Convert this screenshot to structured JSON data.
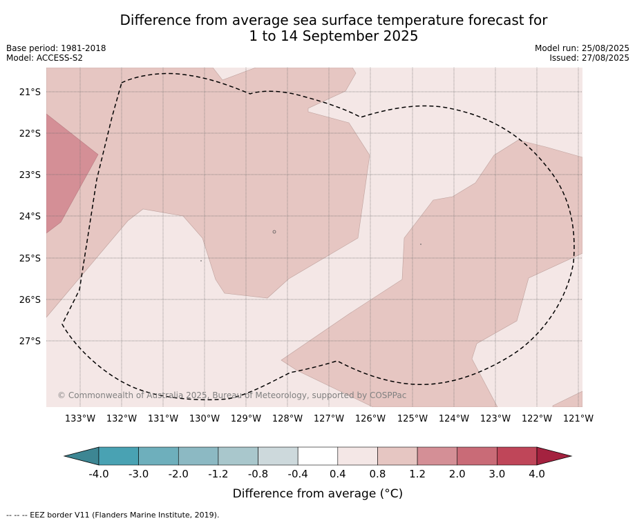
{
  "title_line1": "Difference from average sea surface temperature forecast for",
  "title_line2": "1 to 14 September 2025",
  "base_period": "Base period: 1981-2018",
  "model": "Model: ACCESS-S2",
  "model_run": "Model run: 25/08/2025",
  "issued": "Issued: 27/08/2025",
  "copyright": "© Commonwealth of Australia 2025, Bureau of Meteorology, supported by COSPPac",
  "footnote": "-- -- -- EEZ border V11 (Flanders Marine Institute, 2019).",
  "map": {
    "lat_labels": [
      "21°S",
      "22°S",
      "23°S",
      "24°S",
      "25°S",
      "26°S",
      "27°S"
    ],
    "lon_labels": [
      "133°W",
      "132°W",
      "131°W",
      "130°W",
      "129°W",
      "128°W",
      "127°W",
      "126°W",
      "125°W",
      "124°W",
      "123°W",
      "122°W",
      "121°W"
    ],
    "colors": {
      "anomaly_0_4_to_0_8": "#f4e7e6",
      "anomaly_0_8_to_1_2": "#e6c6c2",
      "anomaly_1_2_to_2_0": "#d48f96"
    }
  },
  "colorbar": {
    "label": "Difference from average (°C)",
    "tick_labels": [
      "-4.0",
      "-3.0",
      "-2.0",
      "-1.2",
      "-0.8",
      "-0.4",
      "0.4",
      "0.8",
      "1.2",
      "2.0",
      "3.0",
      "4.0"
    ],
    "colors": [
      "#49a2b3",
      "#6eafbc",
      "#8cb9c3",
      "#a9c7cc",
      "#cdd9dc",
      "#ffffff",
      "#f4e7e6",
      "#e6c6c2",
      "#d48f96",
      "#c96b77",
      "#bf4659"
    ],
    "extend_low_color": "#3d8693",
    "extend_high_color": "#a4223f"
  }
}
